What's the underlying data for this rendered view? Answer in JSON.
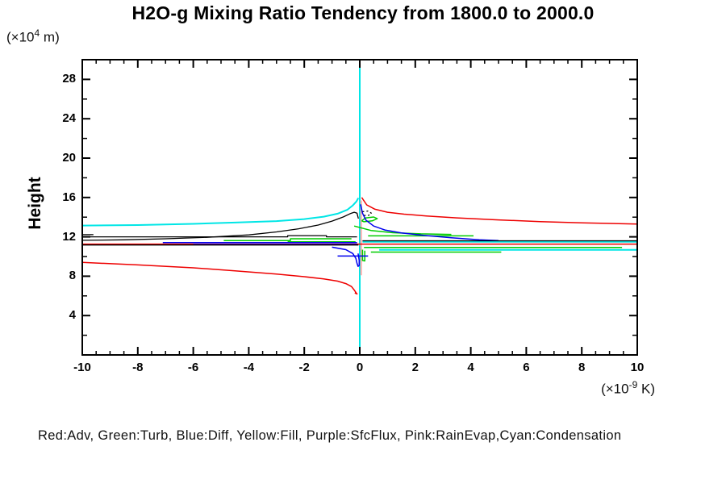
{
  "title": "H2O-g Mixing Ratio Tendency from 1800.0 to 2000.0",
  "y_axis": {
    "name": "Height",
    "units_prefix": "(×10",
    "units_exp": "4",
    "units_suffix": " m)"
  },
  "x_axis": {
    "units_prefix": "(×10",
    "units_exp": "-9",
    "units_suffix": " K)"
  },
  "legend_text": "Red:Adv, Green:Turb, Blue:Diff, Yellow:Fill, Purple:SfcFlux, Pink:RainEvap,Cyan:Condensation",
  "colors": {
    "adv_red": "#ee0000",
    "turb_green": "#00cc00",
    "diff_blue": "#0000ee",
    "fill_yellow": "#ffff00",
    "sfcflux_purple": "#aa00aa",
    "rainevap_pink": "#ffaaaa",
    "condensation_cyan": "#00e6e6",
    "axis": "#000000"
  },
  "chart_data": {
    "type": "line",
    "title": "H2O-g Mixing Ratio Tendency from 1800.0 to 2000.0",
    "xlabel": "(x10^-9 K)",
    "ylabel": "Height (x10^4 m)",
    "xlim": [
      -10,
      10
    ],
    "ylim": [
      0,
      30
    ],
    "x_major_ticks": [
      -10,
      -8,
      -6,
      -4,
      -2,
      0,
      2,
      4,
      6,
      8,
      10
    ],
    "x_minor_step": 0.5,
    "y_major_ticks": [
      4,
      8,
      12,
      16,
      20,
      24,
      28
    ],
    "y_minor_step": 2,
    "grid": false,
    "legend_position": "bottom-text-line",
    "units_note": "x in 1e-9 K, height in 1e4 m",
    "series": [
      {
        "name": "Condensation",
        "color": "#00e6e6",
        "width": 2,
        "segments": [
          [
            [
              0,
              0.15
            ],
            [
              0,
              29.9
            ]
          ],
          [
            [
              -10,
              13.15
            ],
            [
              -8,
              13.2
            ],
            [
              -6,
              13.32
            ],
            [
              -4.5,
              13.45
            ],
            [
              -3,
              13.6
            ],
            [
              -2,
              13.8
            ],
            [
              -1.3,
              14.05
            ],
            [
              -0.8,
              14.35
            ],
            [
              -0.45,
              14.75
            ],
            [
              -0.25,
              15.2
            ],
            [
              -0.12,
              15.6
            ],
            [
              -0.05,
              15.95
            ]
          ],
          [
            [
              0.1,
              11.5
            ],
            [
              10,
              11.5
            ]
          ],
          [
            [
              0.7,
              10.68
            ],
            [
              10,
              10.68
            ]
          ]
        ]
      },
      {
        "name": "RainEvap",
        "color": "#ffaaaa",
        "width": 2,
        "segments": [
          [
            [
              0.05,
              8.1
            ],
            [
              0.05,
              15.7
            ]
          ]
        ]
      },
      {
        "name": "Adv",
        "color": "#ee0000",
        "width": 1.5,
        "segments": [
          [
            [
              0.07,
              16.0
            ],
            [
              0.25,
              15.25
            ],
            [
              0.55,
              14.8
            ],
            [
              1,
              14.5
            ],
            [
              1.6,
              14.3
            ],
            [
              2.4,
              14.12
            ],
            [
              3.5,
              13.93
            ],
            [
              5,
              13.72
            ],
            [
              6.5,
              13.55
            ],
            [
              8,
              13.42
            ],
            [
              10,
              13.3
            ]
          ],
          [
            [
              -10,
              9.4
            ],
            [
              -8,
              9.15
            ],
            [
              -6,
              8.85
            ],
            [
              -4.5,
              8.55
            ],
            [
              -3,
              8.22
            ],
            [
              -2,
              7.95
            ],
            [
              -1.3,
              7.72
            ],
            [
              -0.8,
              7.5
            ],
            [
              -0.5,
              7.25
            ],
            [
              -0.3,
              6.95
            ],
            [
              -0.2,
              6.6
            ],
            [
              -0.13,
              6.3
            ],
            [
              -0.1,
              6.2
            ],
            [
              -0.18,
              6.3
            ]
          ],
          [
            [
              -10,
              11.26
            ],
            [
              10,
              11.26
            ]
          ]
        ]
      },
      {
        "name": "Turb",
        "color": "#00cc00",
        "width": 1.5,
        "segments": [
          [
            [
              -4.9,
              11.62
            ],
            [
              -2.5,
              11.62
            ],
            [
              -2.5,
              11.8
            ],
            [
              -0.3,
              11.8
            ]
          ],
          [
            [
              -2.6,
              11.5
            ],
            [
              -0.15,
              11.5
            ]
          ],
          [
            [
              0.07,
              13.62
            ],
            [
              0.2,
              13.92
            ],
            [
              0.5,
              14.02
            ],
            [
              0.63,
              13.85
            ],
            [
              0.45,
              13.62
            ],
            [
              0.15,
              13.53
            ],
            [
              0.07,
              13.62
            ]
          ],
          [
            [
              -0.2,
              13.1
            ],
            [
              0.4,
              12.65
            ],
            [
              1.2,
              12.42
            ],
            [
              2.2,
              12.3
            ],
            [
              3.3,
              12.25
            ]
          ],
          [
            [
              0.3,
              12.1
            ],
            [
              4.1,
              12.1
            ]
          ],
          [
            [
              0.15,
              10.93
            ],
            [
              9.45,
              10.93
            ]
          ],
          [
            [
              0.4,
              10.45
            ],
            [
              5.1,
              10.45
            ]
          ],
          [
            [
              0.1,
              10.7
            ],
            [
              0.1,
              9.6
            ],
            [
              0.18,
              9.55
            ],
            [
              0.18,
              10.6
            ]
          ]
        ]
      },
      {
        "name": "Diff",
        "color": "#0000ee",
        "width": 1.5,
        "segments": [
          [
            [
              0.03,
              15.3
            ],
            [
              0.1,
              14.4
            ],
            [
              0.22,
              13.7
            ],
            [
              0.5,
              13.1
            ],
            [
              0.9,
              12.7
            ],
            [
              1.5,
              12.4
            ],
            [
              2.3,
              12.15
            ],
            [
              3.3,
              11.9
            ],
            [
              4.3,
              11.7
            ],
            [
              5,
              11.62
            ]
          ],
          [
            [
              -7.1,
              11.42
            ],
            [
              -0.1,
              11.42
            ]
          ],
          [
            [
              -6,
              11.22
            ],
            [
              -0.1,
              11.22
            ]
          ],
          [
            [
              -0.8,
              10.05
            ],
            [
              0.3,
              10.05
            ]
          ],
          [
            [
              -1,
              10.95
            ],
            [
              -0.5,
              10.7
            ],
            [
              -0.25,
              10.3
            ],
            [
              -0.14,
              9.8
            ],
            [
              -0.1,
              9.3
            ],
            [
              -0.06,
              9.0
            ],
            [
              -0.02,
              9.1
            ],
            [
              -0.02,
              9.6
            ],
            [
              -0.06,
              10.3
            ]
          ]
        ]
      },
      {
        "name": "Fill",
        "color": "#ffff00",
        "width": 1.5,
        "segments": []
      },
      {
        "name": "SfcFlux",
        "color": "#aa00aa",
        "width": 1.5,
        "segments": []
      },
      {
        "name": "Black (unlabeled)",
        "color": "#000000",
        "width": 1.3,
        "segments": [
          [
            [
              -10,
              11.65
            ],
            [
              -8.5,
              11.7
            ],
            [
              -7,
              11.8
            ],
            [
              -5.5,
              11.95
            ],
            [
              -4,
              12.2
            ],
            [
              -3,
              12.5
            ],
            [
              -2.2,
              12.82
            ],
            [
              -1.5,
              13.2
            ],
            [
              -1,
              13.6
            ],
            [
              -0.6,
              14.02
            ],
            [
              -0.35,
              14.35
            ],
            [
              -0.2,
              14.5
            ],
            [
              -0.1,
              14.4
            ],
            [
              -0.05,
              13.85
            ]
          ],
          [
            [
              -10,
              12.0
            ],
            [
              -2.6,
              12.0
            ],
            [
              -2.6,
              12.12
            ],
            [
              -1.2,
              12.12
            ],
            [
              -1.2,
              12.0
            ],
            [
              -0.1,
              12.0
            ]
          ],
          [
            [
              -10,
              12.22
            ],
            [
              -9.6,
              12.22
            ]
          ],
          [
            [
              0.1,
              11.6
            ],
            [
              10,
              11.6
            ]
          ],
          [
            [
              -10,
              11.17
            ],
            [
              -0.05,
              11.17
            ]
          ]
        ]
      },
      {
        "name": "Black dotted loop",
        "color": "#000000",
        "width": 1.3,
        "dash": "2,3",
        "segments": [
          [
            [
              0.1,
              14.55
            ],
            [
              0.3,
              14.62
            ],
            [
              0.42,
              14.4
            ],
            [
              0.3,
              14.15
            ],
            [
              0.12,
              14.2
            ]
          ]
        ]
      }
    ]
  }
}
